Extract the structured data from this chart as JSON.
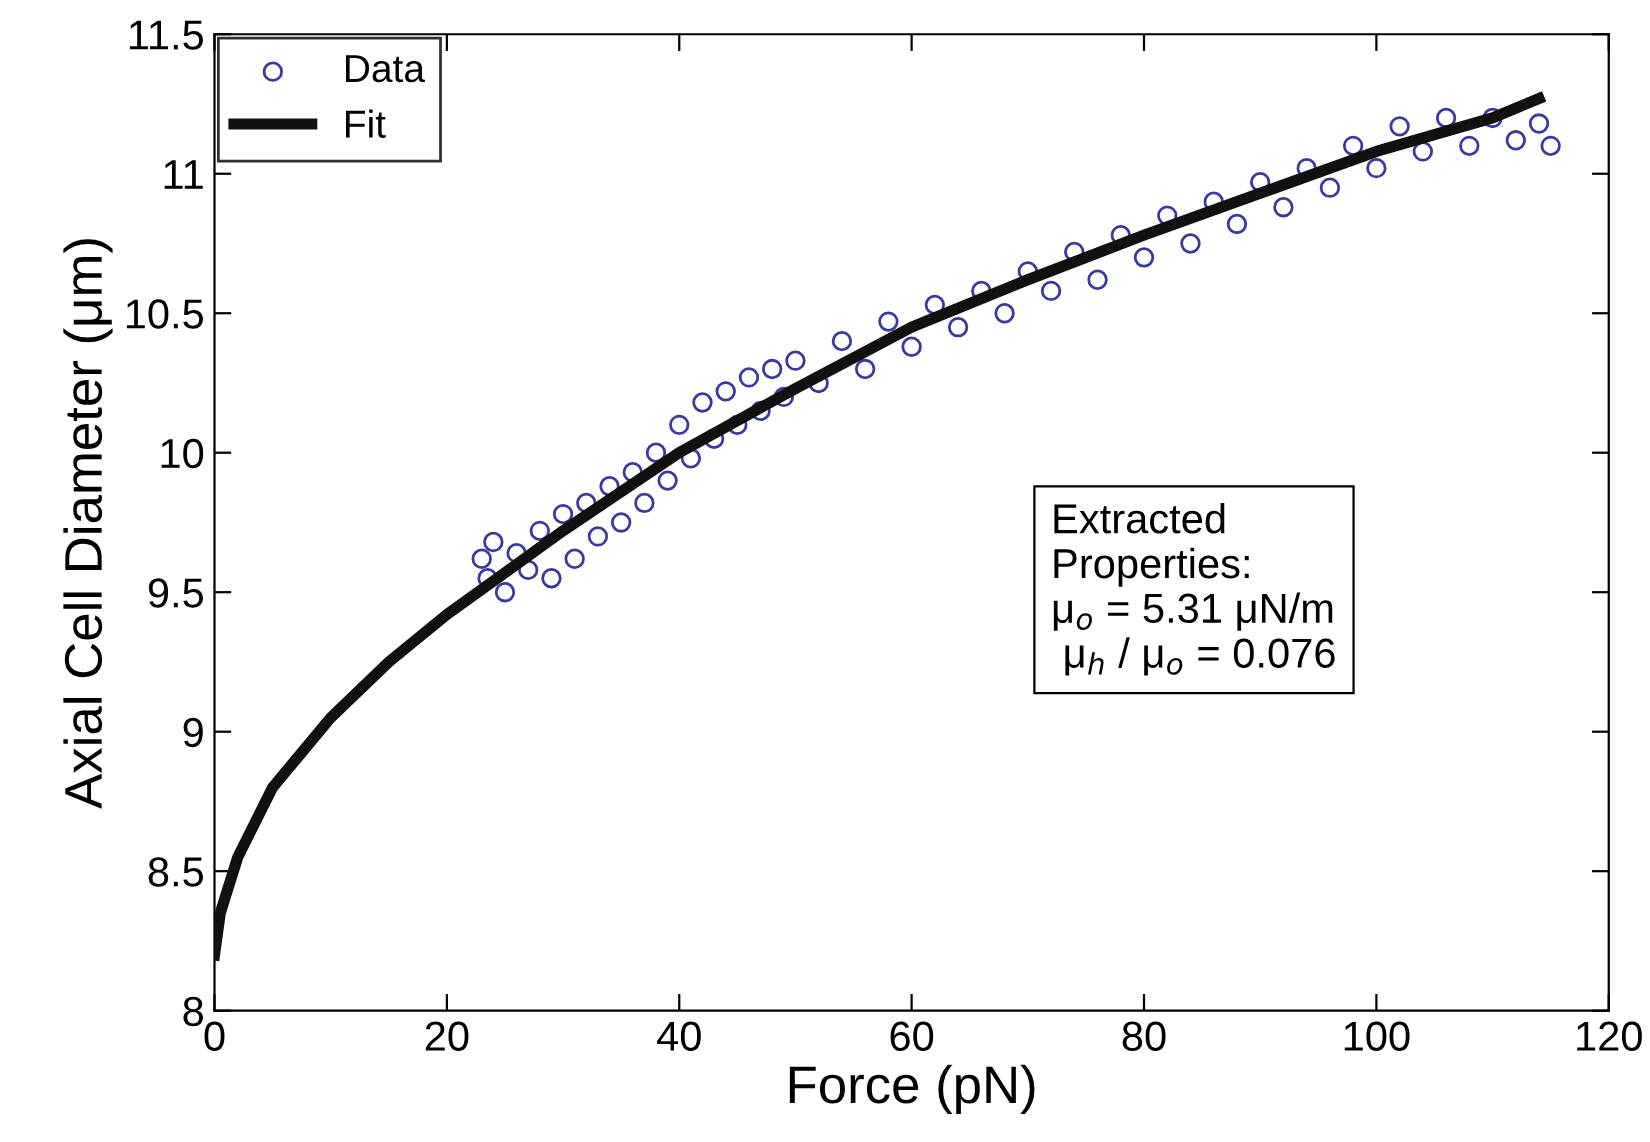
{
  "chart_data": {
    "type": "scatter",
    "xlabel": "Force (pN)",
    "ylabel": "Axial Cell Diameter (μm)",
    "xlim": [
      0,
      120
    ],
    "ylim": [
      8,
      11.5
    ],
    "xticks": [
      0,
      20,
      40,
      60,
      80,
      100,
      120
    ],
    "yticks": [
      8,
      8.5,
      9,
      9.5,
      10,
      10.5,
      11,
      11.5
    ],
    "grid": false,
    "legend": "top left",
    "annotations": [
      "Extracted\nProperties:\nμ$_{o}$ = 5.31 μN/m\n μ$_{h}$ / μ$_{o}$ = 0.076"
    ],
    "series": [
      {
        "name": "Data",
        "marker": "circle",
        "color": "#3a3a9e",
        "x": [
          23,
          23.5,
          24,
          25,
          26,
          27,
          28,
          29,
          30,
          31,
          32,
          33,
          34,
          35,
          36,
          37,
          38,
          39,
          40,
          41,
          42,
          43,
          44,
          45,
          46,
          47,
          48,
          49,
          50,
          52,
          54,
          56,
          58,
          60,
          62,
          64,
          66,
          68,
          70,
          72,
          74,
          76,
          78,
          80,
          82,
          84,
          86,
          88,
          90,
          92,
          94,
          96,
          98,
          100,
          102,
          104,
          106,
          108,
          110,
          112,
          114,
          115
        ],
        "values": [
          9.62,
          9.55,
          9.68,
          9.5,
          9.64,
          9.58,
          9.72,
          9.55,
          9.78,
          9.62,
          9.82,
          9.7,
          9.88,
          9.75,
          9.93,
          9.82,
          10.0,
          9.9,
          10.1,
          9.98,
          10.18,
          10.05,
          10.22,
          10.1,
          10.27,
          10.15,
          10.3,
          10.2,
          10.33,
          10.25,
          10.4,
          10.3,
          10.47,
          10.38,
          10.53,
          10.45,
          10.58,
          10.5,
          10.65,
          10.58,
          10.72,
          10.62,
          10.78,
          10.7,
          10.85,
          10.75,
          10.9,
          10.82,
          10.97,
          10.88,
          11.02,
          10.95,
          11.1,
          11.02,
          11.17,
          11.08,
          11.2,
          11.1,
          11.2,
          11.12,
          11.18,
          11.1
        ]
      },
      {
        "name": "Fit",
        "type": "line",
        "marker": "none",
        "line_style": "solid",
        "color": "#111111",
        "x": [
          0,
          0.5,
          2,
          5,
          10,
          15,
          20,
          25,
          30,
          40,
          50,
          60,
          70,
          80,
          90,
          100,
          110,
          114
        ],
        "values": [
          8.2,
          8.35,
          8.55,
          8.8,
          9.05,
          9.25,
          9.42,
          9.57,
          9.72,
          10.0,
          10.23,
          10.45,
          10.62,
          10.78,
          10.93,
          11.08,
          11.2,
          11.27
        ]
      }
    ]
  }
}
